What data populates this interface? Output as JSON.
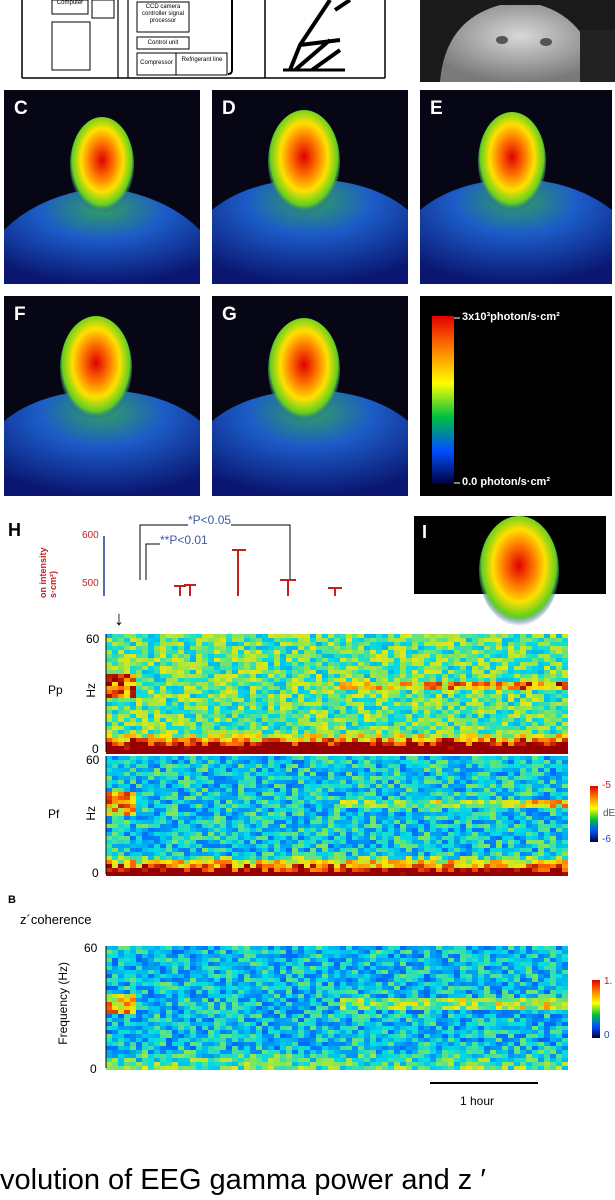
{
  "top_diagram": {
    "computer": "Computer",
    "ccd": "CCD camera controller signal processor",
    "control_unit": "Control unit",
    "compressor": "Compressor",
    "refrigerant": "Refrigerant line"
  },
  "thermal_panels": [
    "C",
    "D",
    "E",
    "F",
    "G"
  ],
  "colorbar": {
    "top_label": "3x10³photon/s·cm²",
    "bottom_label": "0.0 photon/s·cm²"
  },
  "panel_h": {
    "label": "H",
    "ylabel": "on intensity s·cm²)",
    "y_ticks": [
      "600",
      "500"
    ],
    "sig1": "*P<0.05",
    "sig2": "**P<0.01"
  },
  "panel_i": {
    "label": "I"
  },
  "eeg": {
    "arrow": "↓",
    "pp_label": "Pp",
    "pf_label": "Pf",
    "hz_label": "Hz",
    "ticks_top": [
      "60",
      "0"
    ],
    "ticks_mid": [
      "60",
      "0"
    ],
    "cb1_top": "-5",
    "cb1_mid": "dE",
    "cb1_bot": "-6",
    "b_label": "B",
    "coherence_label": "z´coherence",
    "freq_label": "Frequency (Hz)",
    "ticks_bot": [
      "60",
      "0"
    ],
    "cb2_top": "1.",
    "cb2_bot": "0",
    "scale_label": "1 hour"
  },
  "caption": "volution of EEG gamma power and z ′"
}
